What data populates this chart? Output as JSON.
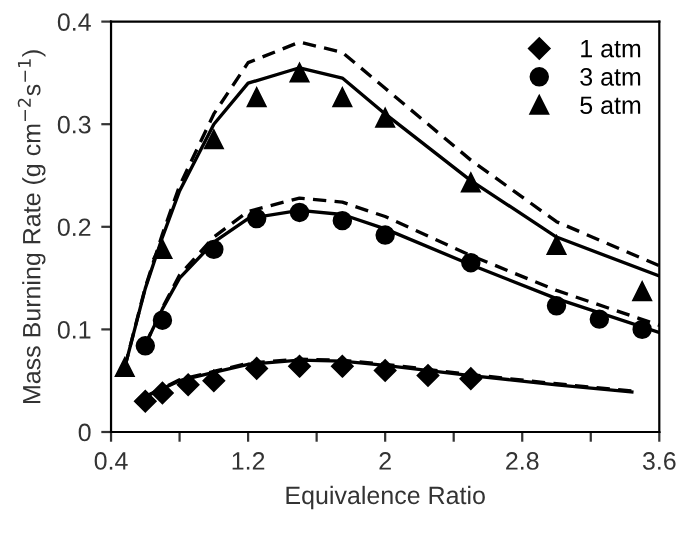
{
  "chart_data": {
    "type": "scatter",
    "xlabel": "Equivalence Ratio",
    "ylabel": "Mass Burning Rate (g cm$^{−2}$s$^{−1}$)",
    "xlim": [
      0.4,
      3.6
    ],
    "ylim": [
      0,
      0.4
    ],
    "xticks": [
      {
        "value": 0.4,
        "label": "0.4"
      },
      {
        "value": 0.8,
        "label": null
      },
      {
        "value": 1.2,
        "label": "1.2"
      },
      {
        "value": 1.6,
        "label": null
      },
      2,
      {
        "value": 2.4,
        "label": null
      },
      {
        "value": 2.8,
        "label": "2.8"
      },
      {
        "value": 3.2,
        "label": null
      },
      {
        "value": 3.6,
        "label": "3.6"
      }
    ],
    "yticks": [
      0,
      0.1,
      0.2,
      0.3,
      0.4
    ],
    "grid": false,
    "legend": "top right",
    "series": [
      {
        "name": "1 atm",
        "marker": "diamond",
        "color": "#000000",
        "x": [
          0.6,
          0.7,
          0.85,
          1.0,
          1.25,
          1.5,
          1.75,
          2.0,
          2.25,
          2.5
        ],
        "values": [
          0.03,
          0.038,
          0.046,
          0.05,
          0.062,
          0.064,
          0.064,
          0.06,
          0.055,
          0.052
        ]
      },
      {
        "name": "3 atm",
        "marker": "circle",
        "color": "#000000",
        "x": [
          0.6,
          0.7,
          1.0,
          1.25,
          1.5,
          1.75,
          2.0,
          2.5,
          3.0,
          3.25,
          3.5
        ],
        "values": [
          0.084,
          0.109,
          0.178,
          0.208,
          0.214,
          0.206,
          0.192,
          0.165,
          0.123,
          0.11,
          0.1
        ]
      },
      {
        "name": "5 atm",
        "marker": "triangle",
        "color": "#000000",
        "x": [
          0.48,
          0.7,
          1.0,
          1.25,
          1.5,
          1.75,
          2.0,
          2.5,
          3.0,
          3.5
        ],
        "values": [
          0.063,
          0.178,
          0.285,
          0.326,
          0.35,
          0.326,
          0.306,
          0.243,
          0.182,
          0.137
        ]
      },
      {
        "type": "line",
        "line_style": "solid",
        "color": "#000000",
        "x": [
          0.62,
          0.8,
          1.0,
          1.2,
          1.5,
          1.75,
          2.0,
          2.5,
          3.0,
          3.44
        ],
        "values": [
          0.036,
          0.05,
          0.058,
          0.066,
          0.07,
          0.069,
          0.065,
          0.055,
          0.046,
          0.039
        ]
      },
      {
        "type": "line",
        "line_style": "dashed",
        "color": "#000000",
        "x": [
          0.62,
          0.8,
          1.0,
          1.2,
          1.5,
          1.75,
          2.0,
          2.5,
          3.0,
          3.44
        ],
        "values": [
          0.036,
          0.051,
          0.059,
          0.067,
          0.071,
          0.07,
          0.066,
          0.056,
          0.047,
          0.04
        ]
      },
      {
        "type": "line",
        "line_style": "solid",
        "color": "#000000",
        "x": [
          0.6,
          0.7,
          0.8,
          1.0,
          1.2,
          1.5,
          1.75,
          2.0,
          2.5,
          3.0,
          3.6
        ],
        "values": [
          0.085,
          0.12,
          0.15,
          0.185,
          0.208,
          0.216,
          0.212,
          0.198,
          0.163,
          0.13,
          0.097
        ]
      },
      {
        "type": "line",
        "line_style": "dashed",
        "color": "#000000",
        "x": [
          0.6,
          0.7,
          0.8,
          1.0,
          1.2,
          1.5,
          1.75,
          2.0,
          2.5,
          3.0,
          3.6
        ],
        "values": [
          0.085,
          0.121,
          0.153,
          0.19,
          0.215,
          0.228,
          0.224,
          0.21,
          0.172,
          0.138,
          0.104
        ]
      },
      {
        "type": "line",
        "line_style": "solid",
        "color": "#000000",
        "x": [
          0.48,
          0.6,
          0.7,
          0.8,
          1.0,
          1.2,
          1.5,
          1.75,
          2.0,
          2.5,
          3.0,
          3.6
        ],
        "values": [
          0.063,
          0.14,
          0.19,
          0.235,
          0.3,
          0.34,
          0.355,
          0.345,
          0.31,
          0.245,
          0.19,
          0.152
        ]
      },
      {
        "type": "line",
        "line_style": "dashed",
        "color": "#000000",
        "x": [
          0.48,
          0.6,
          0.7,
          0.8,
          1.0,
          1.2,
          1.5,
          1.75,
          2.0,
          2.5,
          3.0,
          3.6
        ],
        "values": [
          0.063,
          0.141,
          0.193,
          0.24,
          0.31,
          0.36,
          0.38,
          0.37,
          0.335,
          0.265,
          0.205,
          0.162
        ]
      }
    ]
  }
}
